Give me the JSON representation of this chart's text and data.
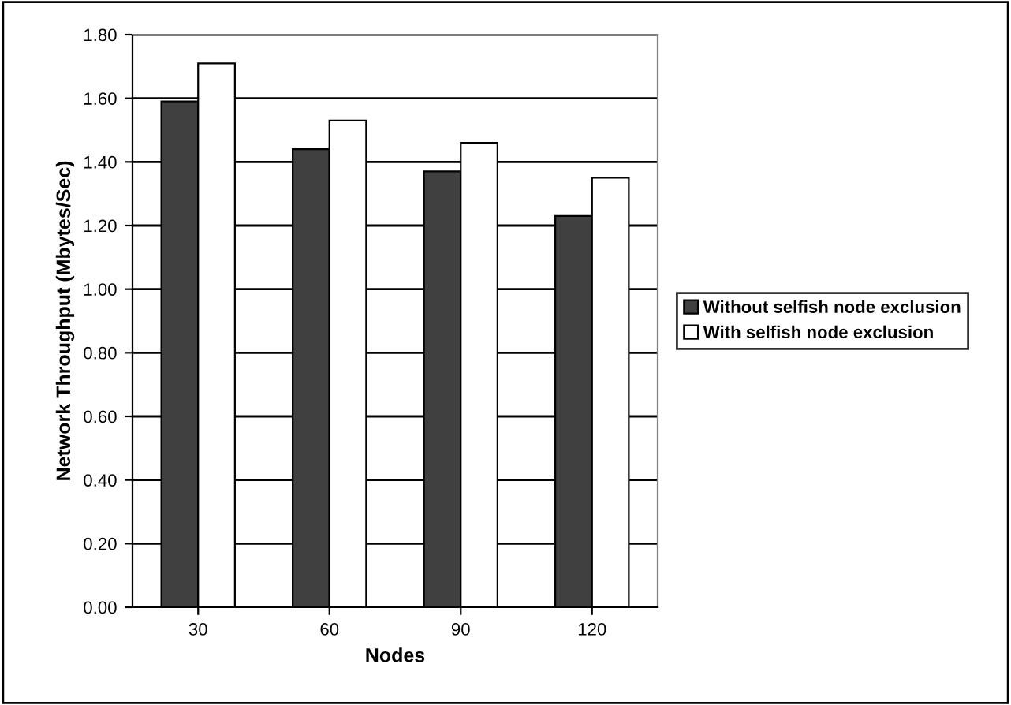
{
  "chart_data": {
    "type": "bar",
    "xlabel": "Nodes",
    "ylabel": "Network Throughput (Mbytes/Sec)",
    "categories": [
      "30",
      "60",
      "90",
      "120"
    ],
    "series": [
      {
        "name": "Without selfish node exclusion",
        "color": "#404040",
        "values": [
          1.59,
          1.44,
          1.37,
          1.23
        ]
      },
      {
        "name": "With selfish node exclusion",
        "color": "#ffffff",
        "values": [
          1.71,
          1.53,
          1.46,
          1.35
        ]
      }
    ],
    "ylim": [
      0,
      1.8
    ],
    "yticks": [
      {
        "value": 0,
        "label": "0.00"
      },
      {
        "value": 0.2,
        "label": "0.20"
      },
      {
        "value": 0.4,
        "label": "0.40"
      },
      {
        "value": 0.6,
        "label": "0.60"
      },
      {
        "value": 0.8,
        "label": "0.80"
      },
      {
        "value": 1.0,
        "label": "1.00"
      },
      {
        "value": 1.2,
        "label": "1.20"
      },
      {
        "value": 1.4,
        "label": "1.40"
      },
      {
        "value": 1.6,
        "label": "1.60"
      },
      {
        "value": 1.8,
        "label": "1.80"
      }
    ],
    "grid": "y",
    "legend": "right"
  }
}
